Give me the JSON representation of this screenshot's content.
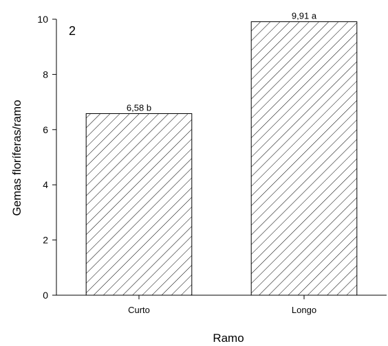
{
  "chart_data": {
    "type": "bar",
    "panel_label": "2",
    "categories": [
      "Curto",
      "Longo"
    ],
    "values": [
      6.58,
      9.91
    ],
    "value_labels": [
      "6,58 b",
      "9,91 a"
    ],
    "xlabel": "Ramo",
    "ylabel": "Gemas floríferas/ramo",
    "ylim": [
      0,
      10
    ],
    "yticks": [
      0,
      2,
      4,
      6,
      8,
      10
    ],
    "grid": false,
    "bar_fill": "diagonal-hatch",
    "bar_color": "#000000",
    "background": "#ffffff"
  }
}
